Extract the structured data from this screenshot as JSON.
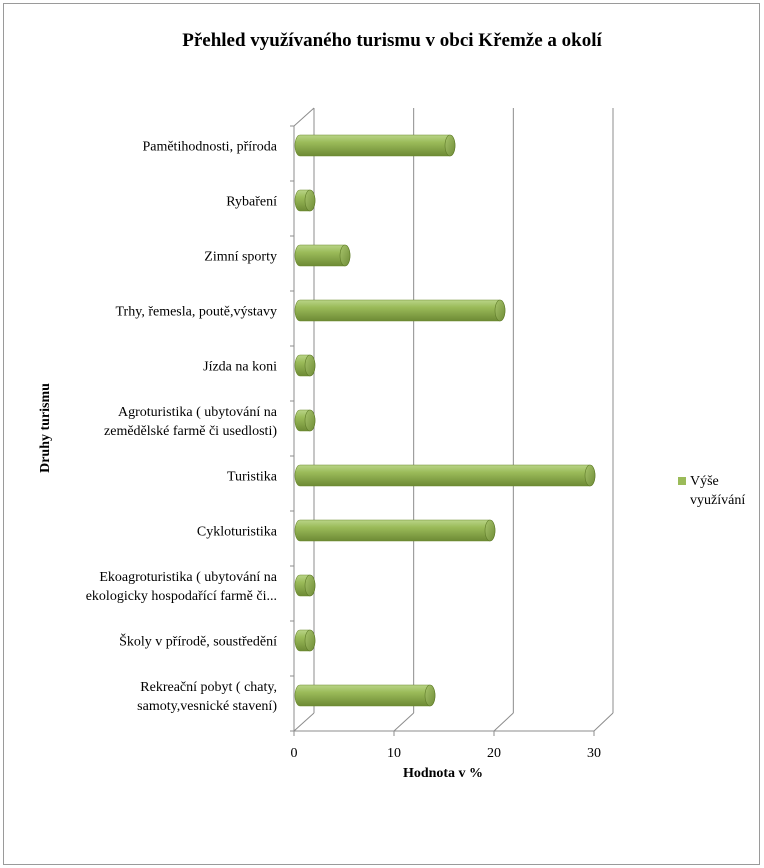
{
  "chart_data": {
    "type": "bar",
    "orientation": "horizontal",
    "style": "3d-cylinder",
    "title": "Přehled využívaného  turismu v obci Křemže a okolí",
    "xlabel": "Hodnota v %",
    "ylabel": "Druhy turismu",
    "xlim": [
      0,
      30
    ],
    "xticks": [
      "0",
      "10",
      "20",
      "30"
    ],
    "grid": true,
    "legend_position": "right",
    "categories": [
      [
        "Pamětihodnosti, příroda"
      ],
      [
        "Rybaření"
      ],
      [
        "Zimní sporty"
      ],
      [
        "Trhy, řemesla, poutě,výstavy"
      ],
      [
        "Jízda na koni"
      ],
      [
        "Agroturistika ( ubytování na",
        "zemědělské farmě či usedlosti)"
      ],
      [
        "Turistika"
      ],
      [
        "Cykloturistika"
      ],
      [
        "Ekoagroturistika ( ubytování na",
        "ekologicky hospodařící farmě či..."
      ],
      [
        "Školy v přírodě, soustředění"
      ],
      [
        "Rekreační pobyt ( chaty,",
        "samoty,vesnické stavení)"
      ]
    ],
    "series": [
      {
        "name": "Výše využívání",
        "legend_lines": [
          "Výše",
          "využívání"
        ],
        "color": "#9bbb59",
        "values": [
          15,
          1,
          4.5,
          20,
          1,
          1,
          29,
          19,
          1,
          1,
          13
        ]
      }
    ]
  }
}
